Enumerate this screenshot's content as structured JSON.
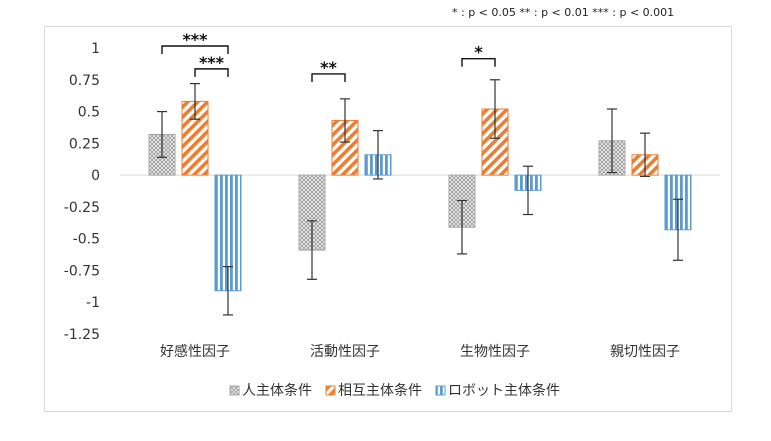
{
  "sig_note": "* : p < 0.05    ** : p < 0.01    *** : p < 0.001",
  "chart_data": {
    "type": "bar",
    "categories": [
      "好感性因子",
      "活動性因子",
      "生物性因子",
      "親切性因子"
    ],
    "series": [
      {
        "name": "人主体条件",
        "pattern": "crosshatch",
        "color": "#a6a6a6",
        "values": [
          0.32,
          -0.59,
          -0.41,
          0.27
        ],
        "errors": [
          0.18,
          0.23,
          0.21,
          0.25
        ]
      },
      {
        "name": "相互主体条件",
        "pattern": "diagonal",
        "color": "#ed7d31",
        "values": [
          0.58,
          0.43,
          0.52,
          0.16
        ],
        "errors": [
          0.14,
          0.17,
          0.23,
          0.17
        ]
      },
      {
        "name": "ロボット主体条件",
        "pattern": "vertical",
        "color": "#5b9bd5",
        "values": [
          -0.91,
          0.16,
          -0.12,
          -0.43
        ],
        "errors": [
          0.19,
          0.19,
          0.19,
          0.24
        ]
      }
    ],
    "ylim": [
      -1.25,
      1
    ],
    "yticks": [
      "1",
      "0.75",
      "0.5",
      "0.25",
      "0",
      "-0.25",
      "-0.5",
      "-0.75",
      "-1",
      "-1.25"
    ],
    "ytick_values": [
      1,
      0.75,
      0.5,
      0.25,
      0,
      -0.25,
      -0.5,
      -0.75,
      -1,
      -1.25
    ],
    "legend_position": "bottom",
    "grid": false,
    "significance": [
      {
        "category": 0,
        "from_series": 0,
        "to_series": 2,
        "label": "***",
        "level": 1.0
      },
      {
        "category": 0,
        "from_series": 1,
        "to_series": 2,
        "label": "***",
        "level": 0.82
      },
      {
        "category": 1,
        "from_series": 0,
        "to_series": 1,
        "label": "**",
        "level": 0.78
      },
      {
        "category": 2,
        "from_series": 0,
        "to_series": 1,
        "label": "*",
        "level": 0.9
      }
    ]
  }
}
